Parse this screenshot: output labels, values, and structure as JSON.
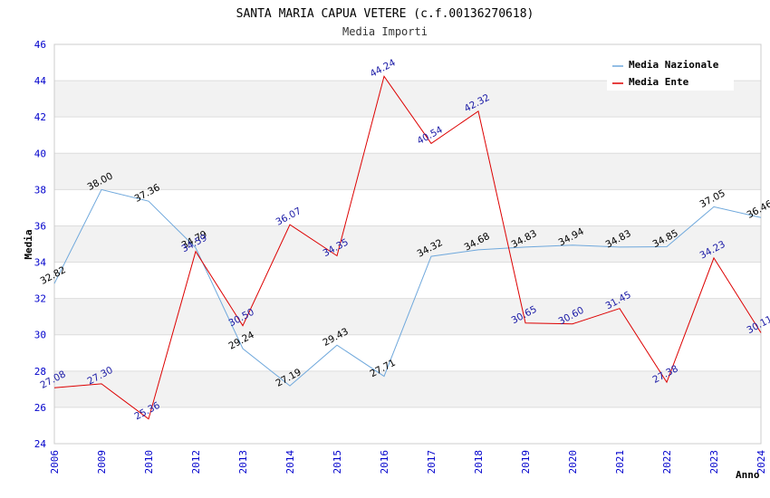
{
  "chart_data": {
    "type": "line",
    "title": "SANTA MARIA CAPUA VETERE (c.f.00136270618)",
    "subtitle": "Media Importi",
    "xlabel": "Anno",
    "ylabel": "Media",
    "ylim": [
      24,
      46
    ],
    "yticks": [
      "24",
      "26",
      "28",
      "30",
      "32",
      "34",
      "36",
      "38",
      "40",
      "42",
      "44",
      "46"
    ],
    "categories": [
      "2006",
      "2009",
      "2010",
      "2012",
      "2013",
      "2014",
      "2015",
      "2016",
      "2017",
      "2018",
      "2019",
      "2020",
      "2021",
      "2022",
      "2023",
      "2024"
    ],
    "grid": "horizontal bands",
    "legend_position": "top-right",
    "series": [
      {
        "name": "Media Nazionale",
        "color": "#6fa8dc",
        "values": [
          32.82,
          38.0,
          37.36,
          34.79,
          29.24,
          27.19,
          29.43,
          27.71,
          34.32,
          34.68,
          34.83,
          34.94,
          34.83,
          34.85,
          37.05,
          36.46
        ],
        "labels": [
          "32.82",
          "38.00",
          "37.36",
          "34.79",
          "29.24",
          "27.19",
          "29.43",
          "27.71",
          "34.32",
          "34.68",
          "34.83",
          "34.94",
          "34.83",
          "34.85",
          "37.05",
          "36.46"
        ]
      },
      {
        "name": "Media Ente",
        "color": "#dd0000",
        "values": [
          27.08,
          27.3,
          25.36,
          34.59,
          30.5,
          36.07,
          34.35,
          44.24,
          40.54,
          42.32,
          30.65,
          30.6,
          31.45,
          27.38,
          34.23,
          30.11
        ],
        "labels": [
          "27.08",
          "27.30",
          "25.36",
          "34.59",
          "30.50",
          "36.07",
          "34.35",
          "44.24",
          "40.54",
          "42.32",
          "30.65",
          "30.60",
          "31.45",
          "27.38",
          "34.23",
          "30.11"
        ]
      }
    ]
  }
}
